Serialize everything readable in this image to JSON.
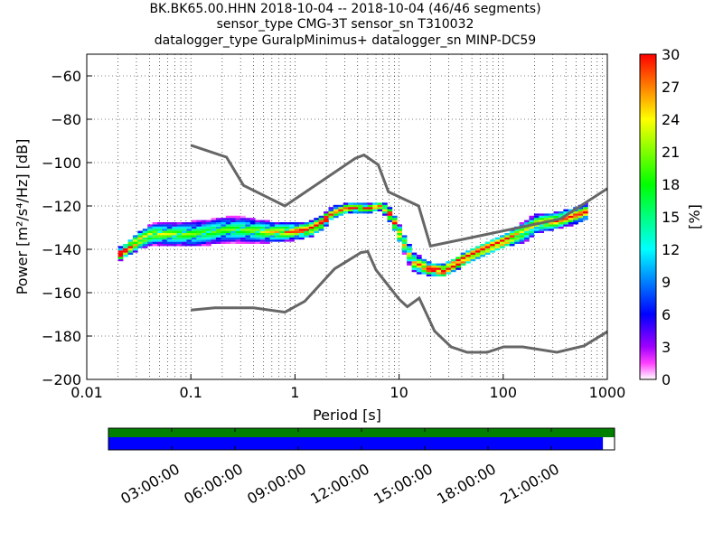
{
  "title": {
    "line1": "BK.BK65.00.HHN   2018-10-04 -- 2018-10-04  (46/46 segments)",
    "line2": "sensor_type CMG-3T sensor_sn T310032",
    "line3": "datalogger_type GuralpMinimus+ datalogger_sn MINP-DC59"
  },
  "chart_data": {
    "type": "heatmap",
    "xlabel": "Period [s]",
    "ylabel": "Power [m²/s⁴/Hz] [dB]",
    "xscale": "log",
    "xlim": [
      0.01,
      1000
    ],
    "ylim": [
      -200,
      -50
    ],
    "xticks": [
      0.01,
      0.1,
      1,
      10,
      100,
      1000
    ],
    "xtick_labels": [
      "0.01",
      "0.1",
      "1",
      "10",
      "100",
      "1000"
    ],
    "yticks": [
      -60,
      -80,
      -100,
      -120,
      -140,
      -160,
      -180,
      -200
    ],
    "ytick_labels": [
      "−60",
      "−80",
      "−100",
      "−120",
      "−140",
      "−160",
      "−180",
      "−200"
    ],
    "grid": true,
    "colorbar": {
      "label": "[%]",
      "range": [
        0,
        30
      ],
      "ticks": [
        "0",
        "3",
        "6",
        "9",
        "12",
        "15",
        "18",
        "21",
        "24",
        "27",
        "30"
      ]
    },
    "noise_models": {
      "high": [
        [
          0.1,
          -92
        ],
        [
          0.22,
          -97.5
        ],
        [
          0.32,
          -110.5
        ],
        [
          0.8,
          -120
        ],
        [
          3.8,
          -98
        ],
        [
          4.6,
          -96.5
        ],
        [
          6.3,
          -101
        ],
        [
          7.9,
          -113.5
        ],
        [
          15.4,
          -120
        ],
        [
          20,
          -138.5
        ],
        [
          354,
          -126
        ],
        [
          1000,
          -112
        ]
      ],
      "low": [
        [
          0.1,
          -168
        ],
        [
          0.17,
          -167
        ],
        [
          0.4,
          -167
        ],
        [
          0.8,
          -169
        ],
        [
          1.24,
          -164
        ],
        [
          2.4,
          -149
        ],
        [
          4.3,
          -141.5
        ],
        [
          5,
          -141
        ],
        [
          6,
          -149.5
        ],
        [
          10,
          -163
        ],
        [
          12,
          -166.5
        ],
        [
          15.6,
          -162.5
        ],
        [
          21.9,
          -177.7
        ],
        [
          31.6,
          -185
        ],
        [
          45,
          -187.5
        ],
        [
          70,
          -187.5
        ],
        [
          101,
          -185
        ],
        [
          154,
          -185
        ],
        [
          328,
          -187.5
        ],
        [
          600,
          -184.5
        ],
        [
          1000,
          -178
        ]
      ]
    },
    "mode_curve": [
      [
        0.02,
        -142
      ],
      [
        0.03,
        -136
      ],
      [
        0.04,
        -133
      ],
      [
        0.06,
        -133
      ],
      [
        0.1,
        -133
      ],
      [
        0.15,
        -132
      ],
      [
        0.2,
        -131
      ],
      [
        0.3,
        -131
      ],
      [
        0.5,
        -132
      ],
      [
        0.8,
        -132
      ],
      [
        1.3,
        -131
      ],
      [
        1.7,
        -128
      ],
      [
        2.2,
        -123
      ],
      [
        3,
        -121
      ],
      [
        5,
        -121
      ],
      [
        6.5,
        -120
      ],
      [
        8,
        -125
      ],
      [
        10,
        -135
      ],
      [
        13,
        -146
      ],
      [
        18,
        -149
      ],
      [
        25,
        -150
      ],
      [
        35,
        -146
      ],
      [
        50,
        -142
      ],
      [
        70,
        -139
      ],
      [
        100,
        -136
      ],
      [
        150,
        -132
      ],
      [
        200,
        -128
      ],
      [
        300,
        -127
      ],
      [
        500,
        -124
      ],
      [
        650,
        -122
      ]
    ],
    "mode_spread_db": [
      [
        0.02,
        3
      ],
      [
        0.04,
        5
      ],
      [
        0.1,
        6
      ],
      [
        0.3,
        6
      ],
      [
        1,
        4
      ],
      [
        2,
        3
      ],
      [
        6,
        2
      ],
      [
        12,
        5
      ],
      [
        20,
        3
      ],
      [
        50,
        3
      ],
      [
        100,
        3
      ],
      [
        150,
        5
      ],
      [
        300,
        4
      ],
      [
        650,
        4
      ]
    ]
  },
  "timeline": {
    "coverage_fraction": 0.977,
    "ticks": [
      "03:00:00",
      "06:00:00",
      "09:00:00",
      "12:00:00",
      "15:00:00",
      "18:00:00",
      "21:00:00"
    ]
  }
}
